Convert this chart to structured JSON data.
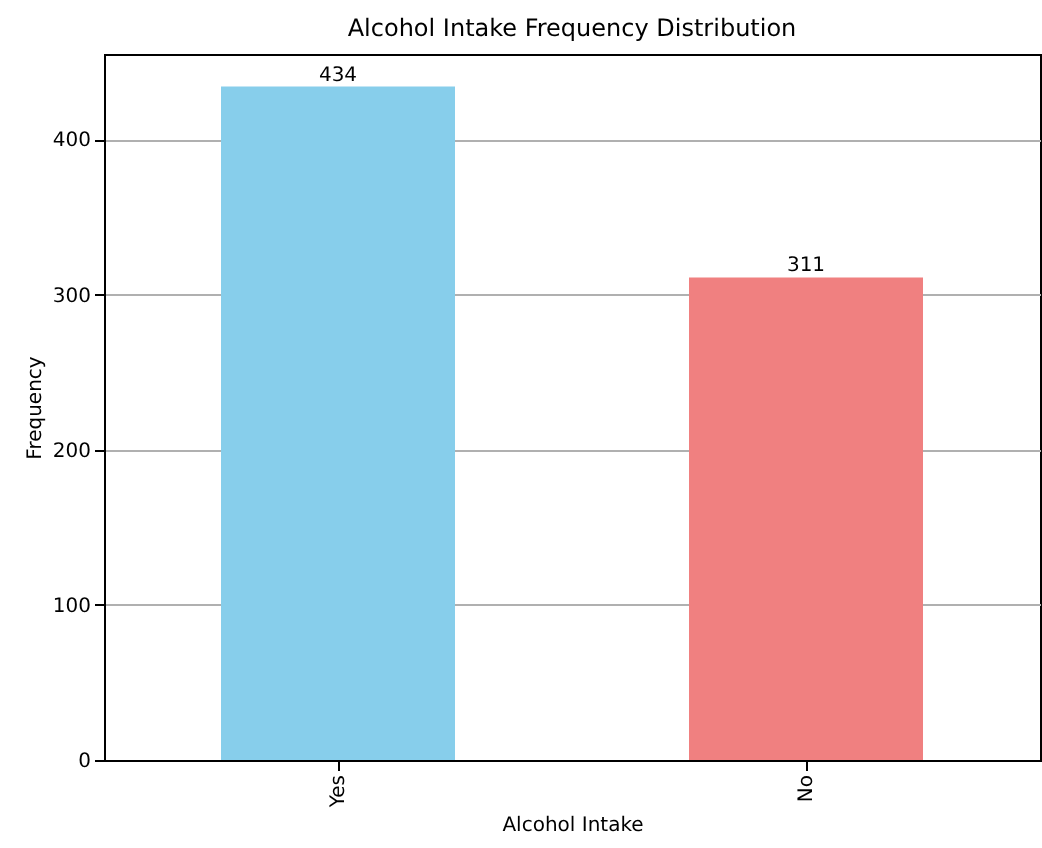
{
  "chart_data": {
    "type": "bar",
    "title": "Alcohol Intake Frequency Distribution",
    "xlabel": "Alcohol Intake",
    "ylabel": "Frequency",
    "categories": [
      "Yes",
      "No"
    ],
    "values": [
      434,
      311
    ],
    "colors": [
      "#87ceeb",
      "#f08080"
    ],
    "ylim": [
      0,
      455
    ],
    "yticks": [
      0,
      100,
      200,
      300,
      400
    ],
    "grid": "y",
    "data_labels": true
  }
}
